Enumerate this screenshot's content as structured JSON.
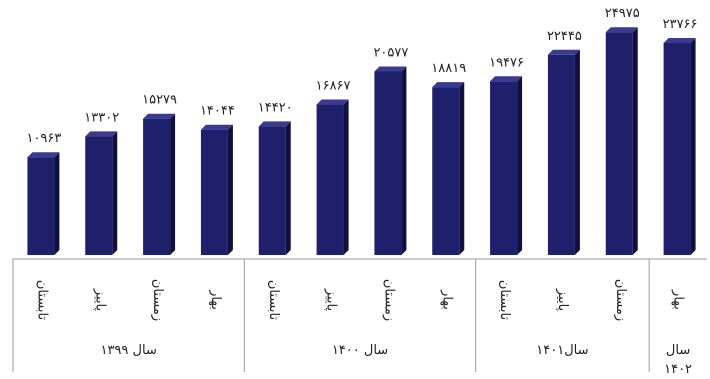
{
  "chart_data": {
    "type": "bar",
    "title": "",
    "xlabel": "",
    "ylabel": "",
    "ylim": [
      0,
      26000
    ],
    "grid": false,
    "legend": "none",
    "colors": {
      "bar": "#1f1f6b",
      "bar_side": "#10103f",
      "bar_top": "#3a3a8f",
      "axis": "#999999"
    },
    "categories": [
      "تابستان",
      "پاییز",
      "زمستان",
      "بهار",
      "تابستان",
      "پاییز",
      "زمستان",
      "بهار",
      "تابستان",
      "پاییز",
      "زمستان",
      "بهار"
    ],
    "values": [
      10963,
      13302,
      15279,
      14044,
      14420,
      16867,
      20577,
      18819,
      19476,
      22445,
      24975,
      23766
    ],
    "value_labels": [
      "۱۰۹۶۳",
      "۱۳۳۰۲",
      "۱۵۲۷۹",
      "۱۴۰۴۴",
      "۱۴۴۲۰",
      "۱۶۸۶۷",
      "۲۰۵۷۷",
      "۱۸۸۱۹",
      "۱۹۴۷۶",
      "۲۲۴۴۵",
      "۲۴۹۷۵",
      "۲۳۷۶۶"
    ],
    "groups": [
      {
        "label": "سال ۱۳۹۹",
        "count": 4
      },
      {
        "label": "سال ۱۴۰۰",
        "count": 4
      },
      {
        "label": "سال۱۴۰۱",
        "count": 3
      },
      {
        "label": "سال ۱۴۰۲",
        "count": 1
      }
    ]
  }
}
